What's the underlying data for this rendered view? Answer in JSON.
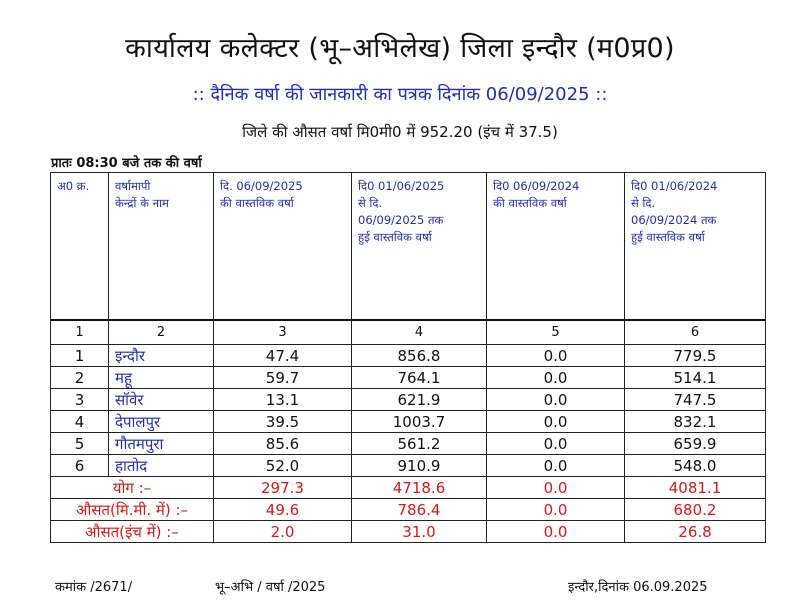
{
  "header": {
    "title": "कार्यालय कलेक्टर (भू–अभिलेख) जिला इन्दौर (म0प्र0)",
    "subtitle": ":: दैनिक वर्षा की जानकारी का पत्रक दिनांक 06/09/2025 ::",
    "average_line": "जिले की औसत वर्षा मि0मी0 में 952.20 (इंच में 37.5)",
    "time_label": "प्रातः 08:30 बजे तक की वर्षा"
  },
  "table": {
    "columns": [
      [
        "अ0 क्र."
      ],
      [
        "वर्षामापी",
        "केन्द्रों के नाम"
      ],
      [
        "दि. 06/09/2025",
        "की वास्तविक वर्षा"
      ],
      [
        "दि0 01/06/2025",
        "से     दि.",
        "06/09/2025 तक",
        "हुई वास्तविक वर्षा"
      ],
      [
        "दि0 06/09/2024",
        "की वास्तविक वर्षा"
      ],
      [
        "दि0 01/06/2024",
        "से दि.",
        "06/09/2024 तक",
        "हुई वास्तविक वर्षा"
      ]
    ],
    "column_numbers": [
      "1",
      "2",
      "3",
      "4",
      "5",
      "6"
    ],
    "rows": [
      {
        "sno": "1",
        "name": "इन्दौर",
        "c3": "47.4",
        "c4": "856.8",
        "c5": "0.0",
        "c6": "779.5"
      },
      {
        "sno": "2",
        "name": "महू",
        "c3": "59.7",
        "c4": "764.1",
        "c5": "0.0",
        "c6": "514.1"
      },
      {
        "sno": "3",
        "name": "सॉवेर",
        "c3": "13.1",
        "c4": "621.9",
        "c5": "0.0",
        "c6": "747.5"
      },
      {
        "sno": "4",
        "name": "देपालपुर",
        "c3": "39.5",
        "c4": "1003.7",
        "c5": "0.0",
        "c6": "832.1"
      },
      {
        "sno": "5",
        "name": "गौतमपुरा",
        "c3": "85.6",
        "c4": "561.2",
        "c5": "0.0",
        "c6": "659.9"
      },
      {
        "sno": "6",
        "name": "हातोद",
        "c3": "52.0",
        "c4": "910.9",
        "c5": "0.0",
        "c6": "548.0"
      }
    ],
    "summary": [
      {
        "label": "योग :–",
        "c3": "297.3",
        "c4": "4718.6",
        "c5": "0.0",
        "c6": "4081.1"
      },
      {
        "label": "औसत(मि.मी. में) :–",
        "c3": "49.6",
        "c4": "786.4",
        "c5": "0.0",
        "c6": "680.2"
      },
      {
        "label": "औसत(इंच में) :–",
        "c3": "2.0",
        "c4": "31.0",
        "c5": "0.0",
        "c6": "26.8"
      }
    ]
  },
  "footer": {
    "ref_no": "कमांक  /2671/",
    "dept": "भू–अभि  /  वर्षा  /2025",
    "place_date": "इन्दौर,दिनांक 06.09.2025"
  }
}
